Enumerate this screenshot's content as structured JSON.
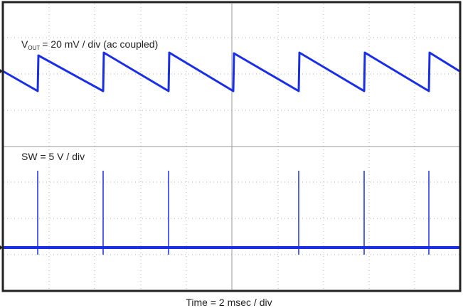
{
  "vout_label": {
    "symbol": "V",
    "subscript": "OUT",
    "text": "= 20 mV / div (ac coupled)"
  },
  "sw_label": "SW = 5 V / div",
  "time_label": "Time = 2 msec / div"
}
